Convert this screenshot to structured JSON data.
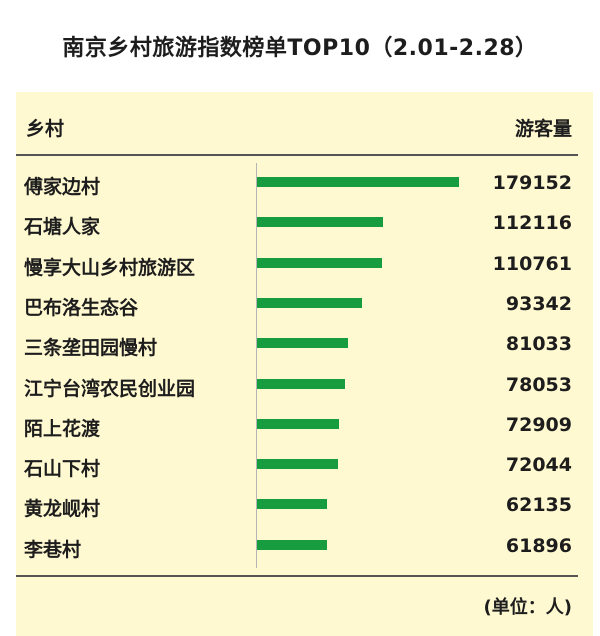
{
  "title": "南京乡村旅游指数榜单TOP10（2.01-2.28）",
  "header": {
    "left": "乡村",
    "right": "游客量"
  },
  "unit": "(单位：人)",
  "colors": {
    "panel_bg": "#fff9d1",
    "bar": "#179c3f"
  },
  "chart_data": {
    "type": "bar",
    "orientation": "horizontal",
    "categories": [
      "傅家边村",
      "石塘人家",
      "慢享大山乡村旅游区",
      "巴布洛生态谷",
      "三条垄田园慢村",
      "江宁台湾农民创业园",
      "陌上花渡",
      "石山下村",
      "黄龙岘村",
      "李巷村"
    ],
    "values": [
      179152,
      112116,
      110761,
      93342,
      81033,
      78053,
      72909,
      72044,
      62135,
      61896
    ],
    "value_labels": [
      "179152",
      "112116",
      "110761",
      "93342",
      "81033",
      "78053",
      "72909",
      "72044",
      "62135",
      "61896"
    ],
    "xlim": [
      0,
      179152
    ],
    "grid": false,
    "legend": "none"
  }
}
